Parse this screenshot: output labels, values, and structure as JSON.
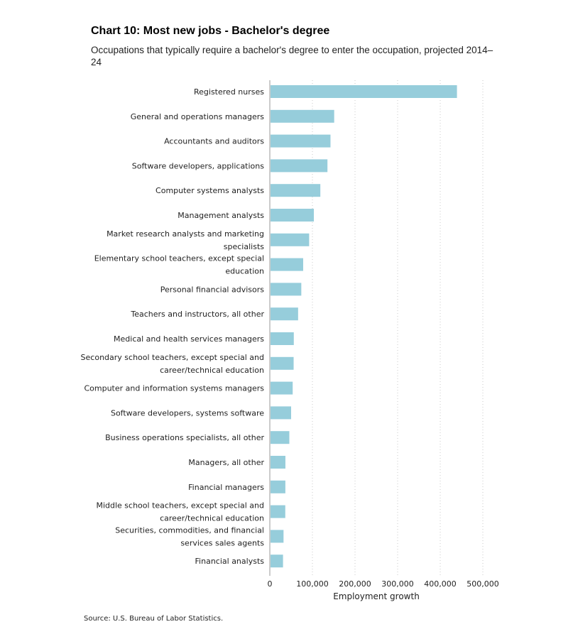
{
  "chart_data": {
    "type": "bar",
    "orientation": "horizontal",
    "title": "Chart 10: Most new jobs - Bachelor's degree",
    "subtitle": "Occupations that typically require a bachelor's degree to enter the occupation, projected 2014–24",
    "xlabel": "Employment growth",
    "xlim": [
      0,
      500000
    ],
    "xticks": [
      0,
      100000,
      200000,
      300000,
      400000,
      500000
    ],
    "xtick_labels": [
      "0",
      "100,000",
      "200,000",
      "300,000",
      "400,000",
      "500,000"
    ],
    "grid": "vertical-dotted",
    "bar_color": "#96cddb",
    "categories": [
      "Registered nurses",
      "General and operations managers",
      "Accountants and auditors",
      "Software developers, applications",
      "Computer systems analysts",
      "Management analysts",
      "Market research analysts and marketing specialists",
      "Elementary school teachers, except special education",
      "Personal financial advisors",
      "Teachers and instructors, all other",
      "Medical and health services managers",
      "Secondary school teachers, except special and career/technical education",
      "Computer and information systems managers",
      "Software developers, systems software",
      "Business operations specialists, all other",
      "Managers, all other",
      "Financial managers",
      "Middle school teachers, except special and career/technical education",
      "Securities, commodities, and financial services sales agents",
      "Financial analysts"
    ],
    "category_lines": [
      [
        "Registered nurses"
      ],
      [
        "General and operations managers"
      ],
      [
        "Accountants and auditors"
      ],
      [
        "Software developers, applications"
      ],
      [
        "Computer systems analysts"
      ],
      [
        "Management analysts"
      ],
      [
        "Market research analysts and marketing",
        "specialists"
      ],
      [
        "Elementary school teachers, except special",
        "education"
      ],
      [
        "Personal financial advisors"
      ],
      [
        "Teachers and instructors, all other"
      ],
      [
        "Medical and health services managers"
      ],
      [
        "Secondary school teachers, except special and",
        "career/technical education"
      ],
      [
        "Computer and information systems managers"
      ],
      [
        "Software developers, systems software"
      ],
      [
        "Business operations specialists, all other"
      ],
      [
        "Managers, all other"
      ],
      [
        "Financial managers"
      ],
      [
        "Middle school teachers, except special and",
        "career/technical education"
      ],
      [
        "Securities, commodities, and financial",
        "services sales agents"
      ],
      [
        "Financial analysts"
      ]
    ],
    "values": [
      439300,
      151100,
      142400,
      135300,
      118600,
      103400,
      92300,
      78300,
      73900,
      66400,
      56300,
      55900,
      53700,
      50000,
      45800,
      36600,
      36500,
      36300,
      32200,
      31000
    ]
  },
  "source": "Source: U.S. Bureau of Labor Statistics."
}
